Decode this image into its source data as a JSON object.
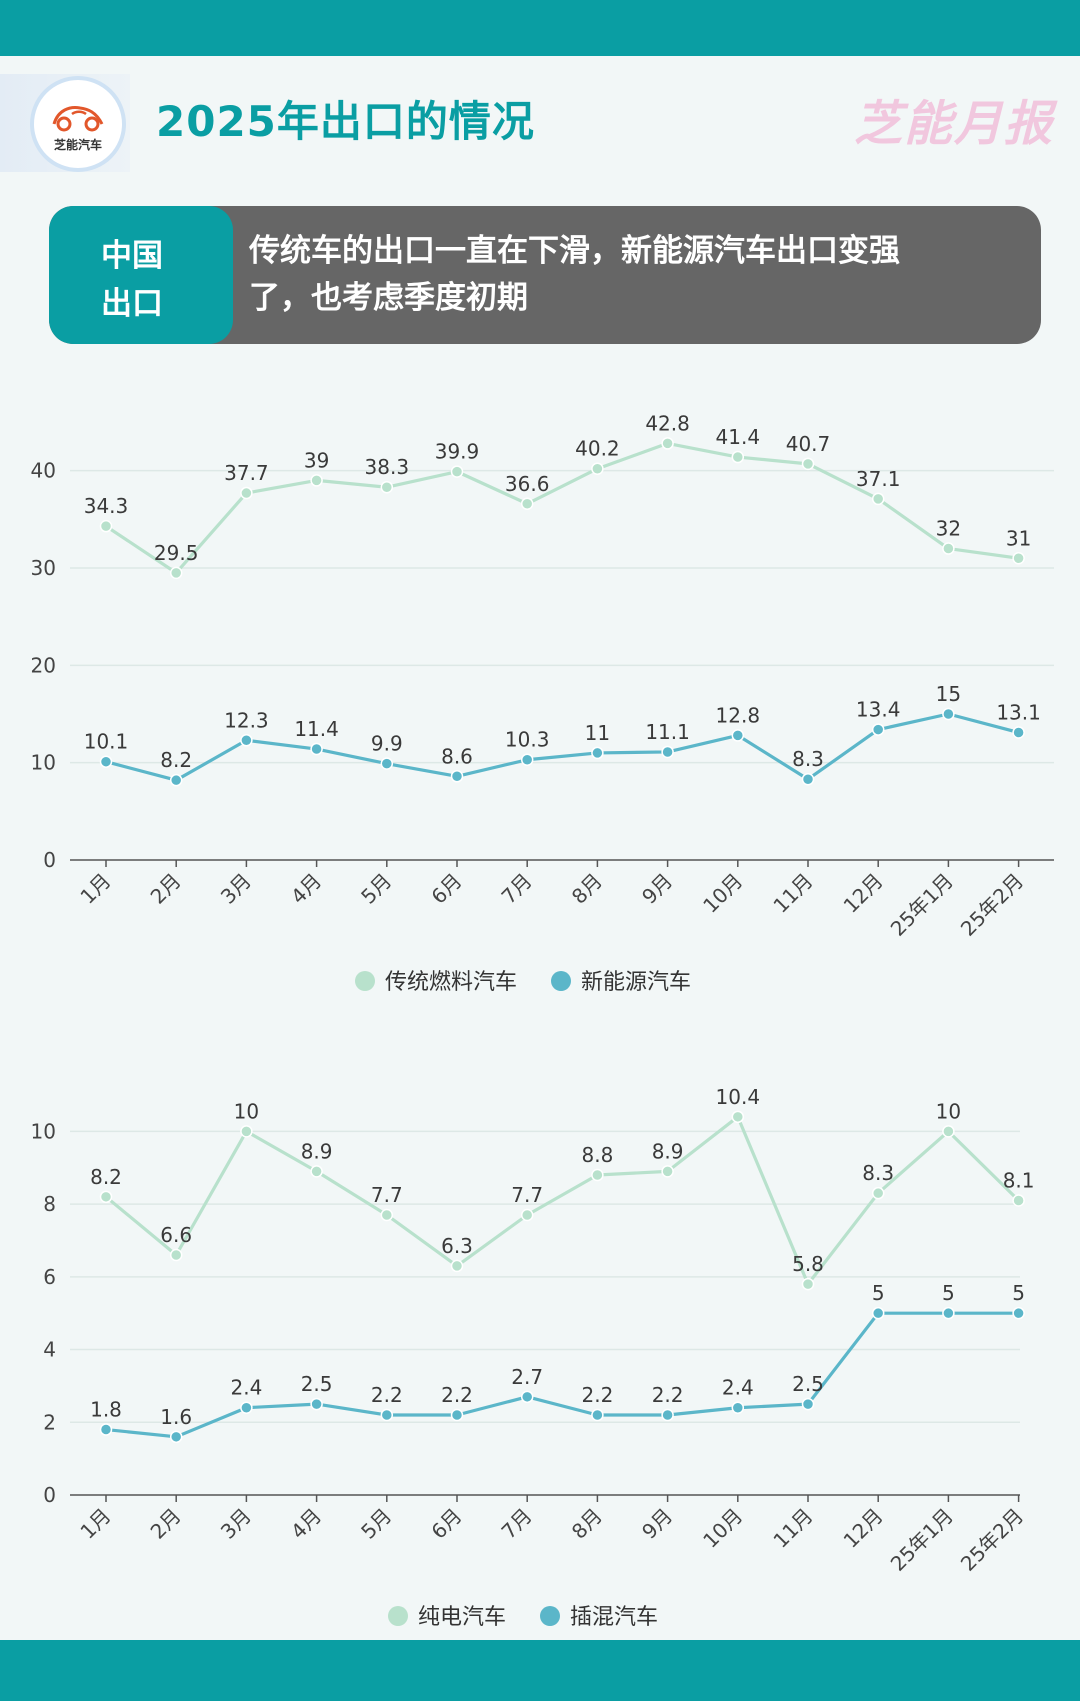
{
  "header": {
    "logo_text": "芝能汽车",
    "title": "2025年出口的情况",
    "brand": "芝能月报"
  },
  "banner": {
    "tag_line1": "中国",
    "tag_line2": "出口",
    "text_line1": "传统车的出口一直在下滑，新能源汽车出口变强",
    "text_line2": "了，也考虑季度初期"
  },
  "colors": {
    "teal": "#0a9ea3",
    "light_green_series": "#b8e1cc",
    "blue_series": "#5bb6c9",
    "banner_gray": "#666666",
    "brand_pink": "#f1c7de"
  },
  "chart_data": [
    {
      "type": "line",
      "title": "",
      "categories": [
        "1月",
        "2月",
        "3月",
        "4月",
        "5月",
        "6月",
        "7月",
        "8月",
        "9月",
        "10月",
        "11月",
        "12月",
        "25年1月",
        "25年2月"
      ],
      "ylim": [
        0,
        45
      ],
      "yticks": [
        0,
        10,
        20,
        30,
        40
      ],
      "grid": true,
      "legend": "bottom",
      "series": [
        {
          "name": "传统燃料汽车",
          "color": "#b8e1cc",
          "values": [
            34.3,
            29.5,
            37.7,
            39,
            38.3,
            39.9,
            36.6,
            40.2,
            42.8,
            41.4,
            40.7,
            37.1,
            32,
            31
          ]
        },
        {
          "name": "新能源汽车",
          "color": "#5bb6c9",
          "values": [
            10.1,
            8.2,
            12.3,
            11.4,
            9.9,
            8.6,
            10.3,
            11,
            11.1,
            12.8,
            8.3,
            13.4,
            15,
            13.1
          ]
        }
      ]
    },
    {
      "type": "line",
      "title": "",
      "categories": [
        "1月",
        "2月",
        "3月",
        "4月",
        "5月",
        "6月",
        "7月",
        "8月",
        "9月",
        "10月",
        "11月",
        "12月",
        "25年1月",
        "25年2月"
      ],
      "ylim": [
        0,
        11
      ],
      "yticks": [
        0,
        2,
        4,
        6,
        8,
        10
      ],
      "grid": true,
      "legend": "bottom",
      "series": [
        {
          "name": "纯电汽车",
          "color": "#b8e1cc",
          "values": [
            8.2,
            6.6,
            10,
            8.9,
            7.7,
            6.3,
            7.7,
            8.8,
            8.9,
            10.4,
            5.8,
            8.3,
            10,
            8.1
          ]
        },
        {
          "name": "插混汽车",
          "color": "#5bb6c9",
          "values": [
            1.8,
            1.6,
            2.4,
            2.5,
            2.2,
            2.2,
            2.7,
            2.2,
            2.2,
            2.4,
            2.5,
            5,
            5,
            5
          ]
        }
      ]
    }
  ]
}
